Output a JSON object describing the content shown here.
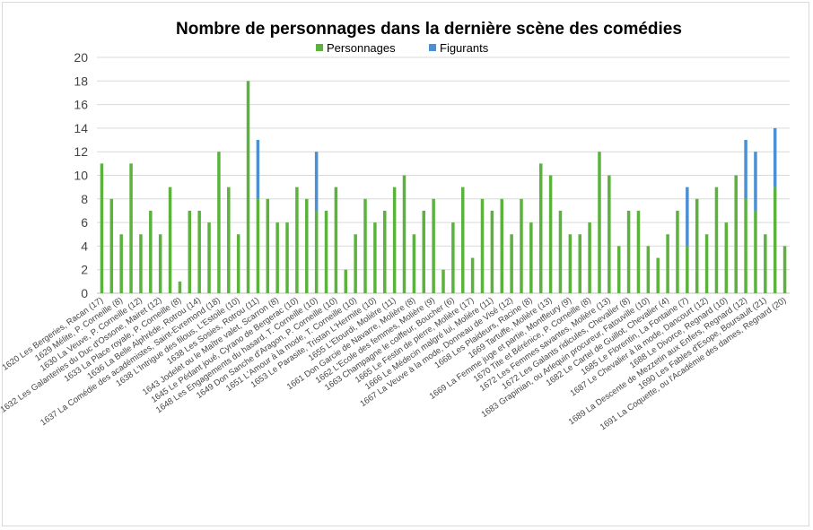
{
  "chart_data": {
    "type": "bar",
    "stacked": true,
    "title": "Nombre de personnages dans la dernière scène des comédies",
    "legend_position": "top",
    "ylim": [
      0,
      20
    ],
    "yticks": [
      0,
      2,
      4,
      6,
      8,
      10,
      12,
      14,
      16,
      18,
      20
    ],
    "grid": true,
    "categories": [
      "1620 Les Bergeries, Racan (17)",
      "",
      "1629 Mélite, P. Corneille (8)",
      "",
      "1630 La Veuve, P. Corneille (12)",
      "",
      "1632 Les Galanteries du Duc d'Ossone, Mairet (12)",
      "",
      "1633 La Place royale, P. Corneille (8)",
      "",
      "1636 La Belle Alphrède, Rotrou (14)",
      "",
      "1637 La Comédie des académistes, Saint-Evremond (18)",
      "",
      "1638 L'Intrigue des filous, L'Estoile (10)",
      "",
      "1638 Les Sosies, Rotrou (11)",
      "",
      "1643 Jodelet ou le Maître valet, Scarron (8)",
      "",
      "1645 Le Pédant joué, Cyrano de Bergerac (10)",
      "",
      "1648 Les Engagements du hasard, T. Corneille (10)",
      "",
      "1649 Don Sanche d'Aragon, P. Corneille (10)",
      "",
      "1651 L'Amour à la mode, T. Corneille (10)",
      "",
      "1653 Le Parasite, Tristan L'Hermite (10)",
      "",
      "1655 L'Etourdi, Molière (11)",
      "",
      "1661 Don Garcie de Navarre, Molière (8)",
      "",
      "1662 L'Ecole des femmes, Molière (9)",
      "",
      "1663 Champagne le coiffeur, Boucher (6)",
      "",
      "1665 Le Festin de pierre, Molière (17)",
      "",
      "1666 Le Médecin malgré lui, Molière (11)",
      "",
      "1667 La Veuve à la mode, Donneau de Visé (12)",
      "",
      "1668 Les Plaideurs, Racine (8)",
      "",
      "1669 Tartuffe, Molière (13)",
      "",
      "1669 La Femme juge et partie, Montfleury (9)",
      "",
      "1670 Tite et Bérénice, P. Corneille (8)",
      "",
      "1672 Les Femmes savantes, Molière (13)",
      "",
      "1672 Les Galants ridicules, Chevalier (8)",
      "",
      "1683 Grapinian, ou Arlequin procureur, Fatouville (10)",
      "",
      "1682 Le Cartel de Guillot, Chevalier (4)",
      "",
      "1685 Le Florentin, La Fontaine (7)",
      "",
      "1687 Le Chevalier à la mode, Dancourt (12)",
      "",
      "1688 Le Divorce, Regnard (10)",
      "",
      "1689 La Descente de Mezzetin aux Enfers, Regnard (12)",
      "",
      "1690 Les Fables d'Esope, Boursault (21)",
      "",
      "1691 La Coquette, ou l'Académie des dames, Regnard (20)"
    ],
    "series": [
      {
        "name": "Personnages",
        "color": "#5bb33d",
        "values": [
          11,
          8,
          5,
          11,
          5,
          7,
          5,
          9,
          1,
          7,
          7,
          6,
          12,
          9,
          5,
          18,
          8,
          8,
          6,
          6,
          9,
          8,
          7,
          7,
          9,
          2,
          5,
          8,
          6,
          7,
          9,
          10,
          5,
          7,
          8,
          2,
          6,
          9,
          3,
          8,
          7,
          8,
          5,
          8,
          6,
          11,
          10,
          7,
          5,
          5,
          6,
          12,
          10,
          4,
          7,
          7,
          4,
          3,
          5,
          7,
          4,
          8,
          5,
          9,
          6,
          10,
          8,
          7,
          5,
          9,
          4
        ]
      },
      {
        "name": "Figurants",
        "color": "#4a90d2",
        "values": [
          0,
          0,
          0,
          0,
          0,
          0,
          0,
          0,
          0,
          0,
          0,
          0,
          0,
          0,
          0,
          0,
          5,
          0,
          0,
          0,
          0,
          0,
          5,
          0,
          0,
          0,
          0,
          0,
          0,
          0,
          0,
          0,
          0,
          0,
          0,
          0,
          0,
          0,
          0,
          0,
          0,
          0,
          0,
          0,
          0,
          0,
          0,
          0,
          0,
          0,
          0,
          0,
          0,
          0,
          0,
          0,
          0,
          0,
          0,
          0,
          5,
          0,
          0,
          0,
          0,
          0,
          5,
          5,
          0,
          5,
          0
        ]
      }
    ]
  }
}
